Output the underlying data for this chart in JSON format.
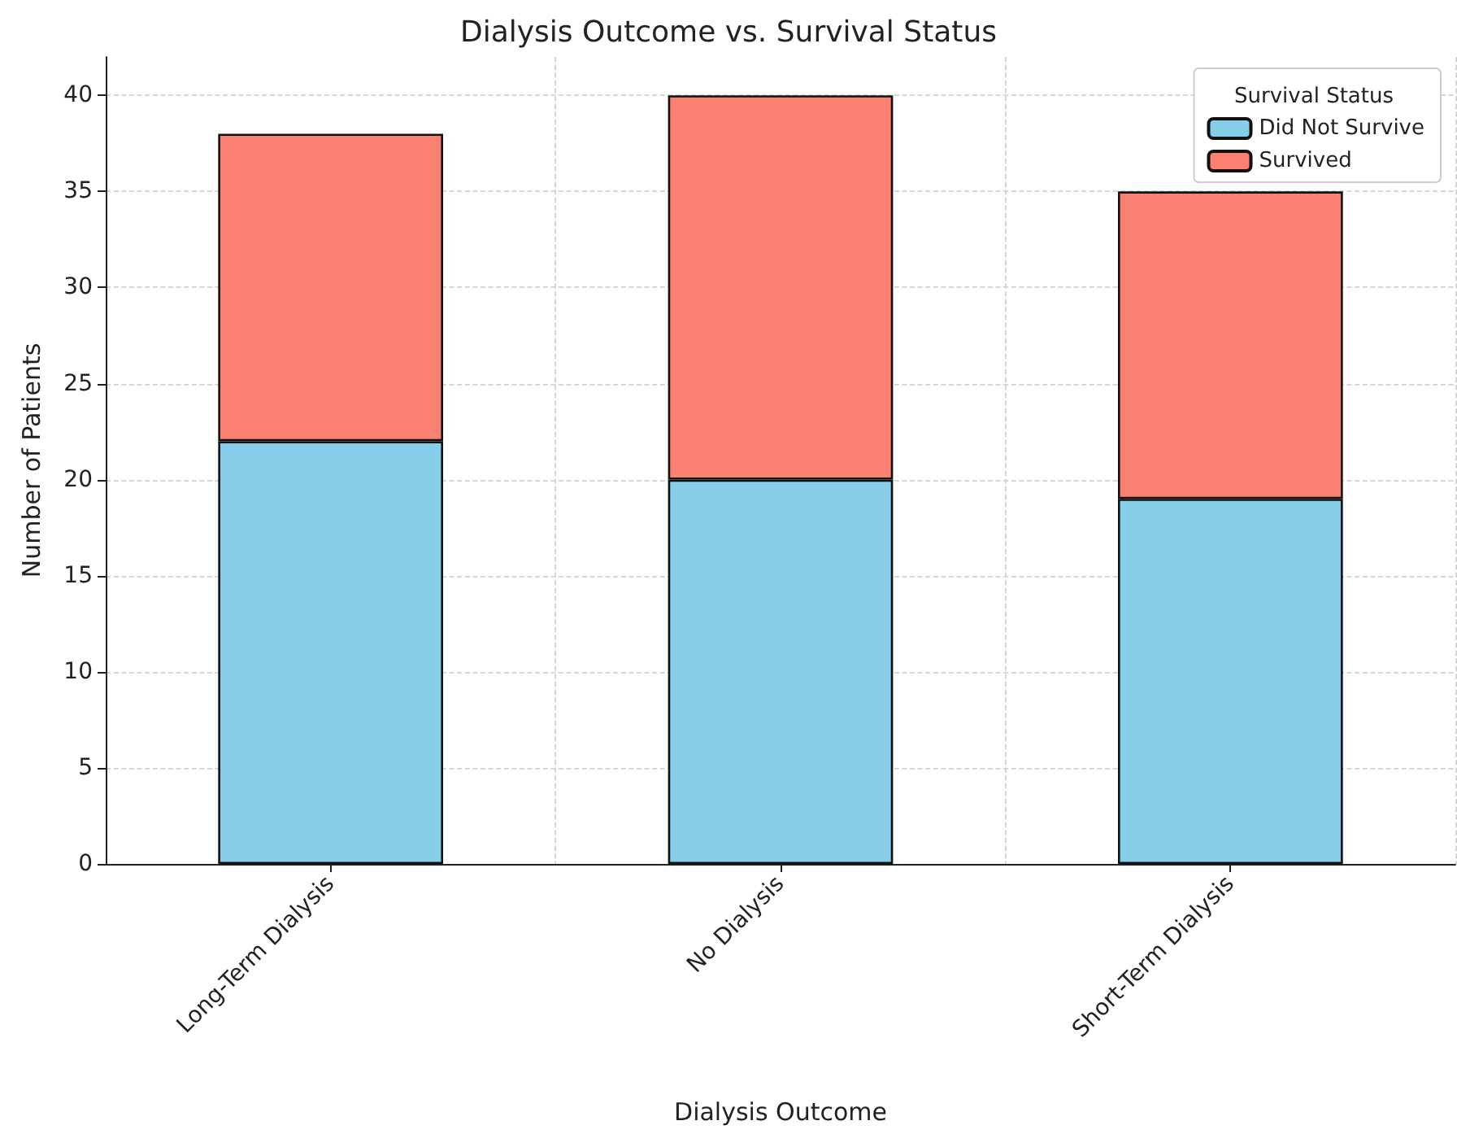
{
  "chart_data": {
    "type": "bar",
    "title": "Dialysis Outcome vs. Survival Status",
    "xlabel": "Dialysis Outcome",
    "ylabel": "Number of Patients",
    "legend_title": "Survival Status",
    "categories": [
      "Long-Term Dialysis",
      "No Dialysis",
      "Short-Term Dialysis"
    ],
    "series": [
      {
        "name": "Did Not Survive",
        "color": "#87ceeb",
        "values": [
          22,
          20,
          19
        ]
      },
      {
        "name": "Survived",
        "color": "#fa8072",
        "values": [
          16,
          20,
          16
        ]
      }
    ],
    "stacked": true,
    "ylim": [
      0,
      42
    ],
    "yticks": [
      0,
      5,
      10,
      15,
      20,
      25,
      30,
      35,
      40
    ],
    "grid": true,
    "legend": "top right"
  }
}
